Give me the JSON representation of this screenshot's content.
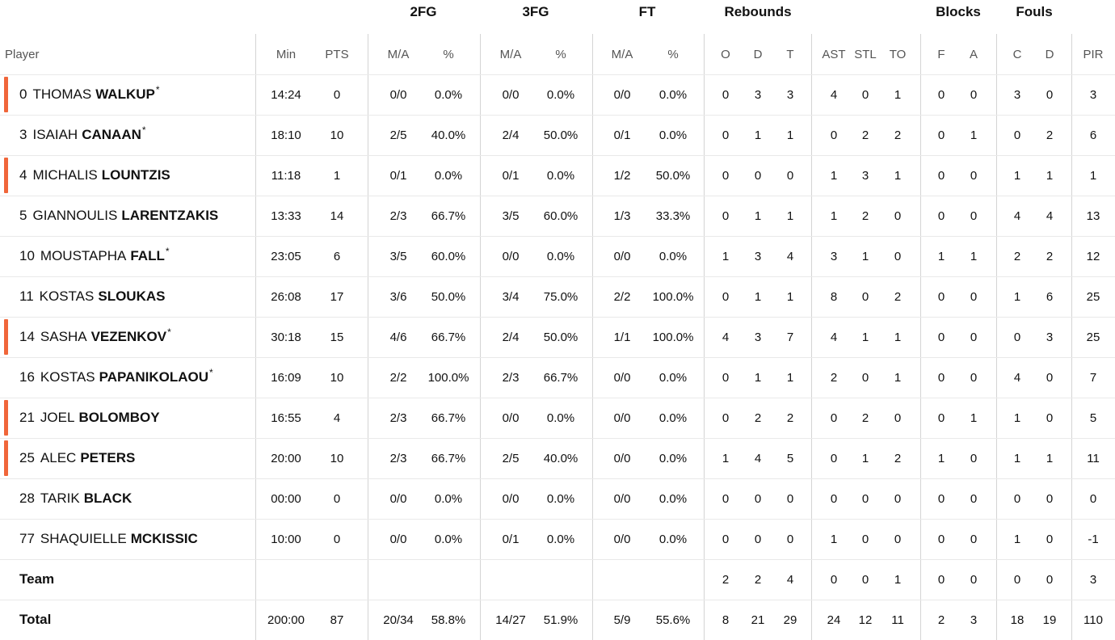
{
  "groups": {
    "fg2": "2FG",
    "fg3": "3FG",
    "ft": "FT",
    "reb": "Rebounds",
    "blk": "Blocks",
    "fouls": "Fouls"
  },
  "columns": {
    "player": "Player",
    "min": "Min",
    "pts": "PTS",
    "fg2_ma": "M/A",
    "fg2_pct": "%",
    "fg3_ma": "M/A",
    "fg3_pct": "%",
    "ft_ma": "M/A",
    "ft_pct": "%",
    "reb_o": "O",
    "reb_d": "D",
    "reb_t": "T",
    "ast": "AST",
    "stl": "STL",
    "to": "TO",
    "blk_f": "F",
    "blk_a": "A",
    "foul_c": "C",
    "foul_d": "D",
    "pir": "PIR"
  },
  "marker_color": "#f0663a",
  "players": [
    {
      "num": "0",
      "first": "THOMAS",
      "last": "WALKUP",
      "star": "*",
      "marker": true,
      "min": "14:24",
      "pts": "0",
      "fg2_ma": "0/0",
      "fg2_pct": "0.0%",
      "fg3_ma": "0/0",
      "fg3_pct": "0.0%",
      "ft_ma": "0/0",
      "ft_pct": "0.0%",
      "reb_o": "0",
      "reb_d": "3",
      "reb_t": "3",
      "ast": "4",
      "stl": "0",
      "to": "1",
      "blk_f": "0",
      "blk_a": "0",
      "foul_c": "3",
      "foul_d": "0",
      "pir": "3"
    },
    {
      "num": "3",
      "first": "ISAIAH",
      "last": "CANAAN",
      "star": "*",
      "marker": false,
      "min": "18:10",
      "pts": "10",
      "fg2_ma": "2/5",
      "fg2_pct": "40.0%",
      "fg3_ma": "2/4",
      "fg3_pct": "50.0%",
      "ft_ma": "0/1",
      "ft_pct": "0.0%",
      "reb_o": "0",
      "reb_d": "1",
      "reb_t": "1",
      "ast": "0",
      "stl": "2",
      "to": "2",
      "blk_f": "0",
      "blk_a": "1",
      "foul_c": "0",
      "foul_d": "2",
      "pir": "6"
    },
    {
      "num": "4",
      "first": "MICHALIS",
      "last": "LOUNTZIS",
      "star": "",
      "marker": true,
      "min": "11:18",
      "pts": "1",
      "fg2_ma": "0/1",
      "fg2_pct": "0.0%",
      "fg3_ma": "0/1",
      "fg3_pct": "0.0%",
      "ft_ma": "1/2",
      "ft_pct": "50.0%",
      "reb_o": "0",
      "reb_d": "0",
      "reb_t": "0",
      "ast": "1",
      "stl": "3",
      "to": "1",
      "blk_f": "0",
      "blk_a": "0",
      "foul_c": "1",
      "foul_d": "1",
      "pir": "1"
    },
    {
      "num": "5",
      "first": "GIANNOULIS",
      "last": "LARENTZAKIS",
      "star": "",
      "marker": false,
      "min": "13:33",
      "pts": "14",
      "fg2_ma": "2/3",
      "fg2_pct": "66.7%",
      "fg3_ma": "3/5",
      "fg3_pct": "60.0%",
      "ft_ma": "1/3",
      "ft_pct": "33.3%",
      "reb_o": "0",
      "reb_d": "1",
      "reb_t": "1",
      "ast": "1",
      "stl": "2",
      "to": "0",
      "blk_f": "0",
      "blk_a": "0",
      "foul_c": "4",
      "foul_d": "4",
      "pir": "13"
    },
    {
      "num": "10",
      "first": "MOUSTAPHA",
      "last": "FALL",
      "star": "*",
      "marker": false,
      "min": "23:05",
      "pts": "6",
      "fg2_ma": "3/5",
      "fg2_pct": "60.0%",
      "fg3_ma": "0/0",
      "fg3_pct": "0.0%",
      "ft_ma": "0/0",
      "ft_pct": "0.0%",
      "reb_o": "1",
      "reb_d": "3",
      "reb_t": "4",
      "ast": "3",
      "stl": "1",
      "to": "0",
      "blk_f": "1",
      "blk_a": "1",
      "foul_c": "2",
      "foul_d": "2",
      "pir": "12"
    },
    {
      "num": "11",
      "first": "KOSTAS",
      "last": "SLOUKAS",
      "star": "",
      "marker": false,
      "min": "26:08",
      "pts": "17",
      "fg2_ma": "3/6",
      "fg2_pct": "50.0%",
      "fg3_ma": "3/4",
      "fg3_pct": "75.0%",
      "ft_ma": "2/2",
      "ft_pct": "100.0%",
      "reb_o": "0",
      "reb_d": "1",
      "reb_t": "1",
      "ast": "8",
      "stl": "0",
      "to": "2",
      "blk_f": "0",
      "blk_a": "0",
      "foul_c": "1",
      "foul_d": "6",
      "pir": "25"
    },
    {
      "num": "14",
      "first": "SASHA",
      "last": "VEZENKOV",
      "star": "*",
      "marker": true,
      "min": "30:18",
      "pts": "15",
      "fg2_ma": "4/6",
      "fg2_pct": "66.7%",
      "fg3_ma": "2/4",
      "fg3_pct": "50.0%",
      "ft_ma": "1/1",
      "ft_pct": "100.0%",
      "reb_o": "4",
      "reb_d": "3",
      "reb_t": "7",
      "ast": "4",
      "stl": "1",
      "to": "1",
      "blk_f": "0",
      "blk_a": "0",
      "foul_c": "0",
      "foul_d": "3",
      "pir": "25"
    },
    {
      "num": "16",
      "first": "KOSTAS",
      "last": "PAPANIKOLAOU",
      "star": "*",
      "marker": false,
      "min": "16:09",
      "pts": "10",
      "fg2_ma": "2/2",
      "fg2_pct": "100.0%",
      "fg3_ma": "2/3",
      "fg3_pct": "66.7%",
      "ft_ma": "0/0",
      "ft_pct": "0.0%",
      "reb_o": "0",
      "reb_d": "1",
      "reb_t": "1",
      "ast": "2",
      "stl": "0",
      "to": "1",
      "blk_f": "0",
      "blk_a": "0",
      "foul_c": "4",
      "foul_d": "0",
      "pir": "7"
    },
    {
      "num": "21",
      "first": "JOEL",
      "last": "BOLOMBOY",
      "star": "",
      "marker": true,
      "min": "16:55",
      "pts": "4",
      "fg2_ma": "2/3",
      "fg2_pct": "66.7%",
      "fg3_ma": "0/0",
      "fg3_pct": "0.0%",
      "ft_ma": "0/0",
      "ft_pct": "0.0%",
      "reb_o": "0",
      "reb_d": "2",
      "reb_t": "2",
      "ast": "0",
      "stl": "2",
      "to": "0",
      "blk_f": "0",
      "blk_a": "1",
      "foul_c": "1",
      "foul_d": "0",
      "pir": "5"
    },
    {
      "num": "25",
      "first": "ALEC",
      "last": "PETERS",
      "star": "",
      "marker": true,
      "min": "20:00",
      "pts": "10",
      "fg2_ma": "2/3",
      "fg2_pct": "66.7%",
      "fg3_ma": "2/5",
      "fg3_pct": "40.0%",
      "ft_ma": "0/0",
      "ft_pct": "0.0%",
      "reb_o": "1",
      "reb_d": "4",
      "reb_t": "5",
      "ast": "0",
      "stl": "1",
      "to": "2",
      "blk_f": "1",
      "blk_a": "0",
      "foul_c": "1",
      "foul_d": "1",
      "pir": "11"
    },
    {
      "num": "28",
      "first": "TARIK",
      "last": "BLACK",
      "star": "",
      "marker": false,
      "min": "00:00",
      "pts": "0",
      "fg2_ma": "0/0",
      "fg2_pct": "0.0%",
      "fg3_ma": "0/0",
      "fg3_pct": "0.0%",
      "ft_ma": "0/0",
      "ft_pct": "0.0%",
      "reb_o": "0",
      "reb_d": "0",
      "reb_t": "0",
      "ast": "0",
      "stl": "0",
      "to": "0",
      "blk_f": "0",
      "blk_a": "0",
      "foul_c": "0",
      "foul_d": "0",
      "pir": "0"
    },
    {
      "num": "77",
      "first": "SHAQUIELLE",
      "last": "MCKISSIC",
      "star": "",
      "marker": false,
      "min": "10:00",
      "pts": "0",
      "fg2_ma": "0/0",
      "fg2_pct": "0.0%",
      "fg3_ma": "0/1",
      "fg3_pct": "0.0%",
      "ft_ma": "0/0",
      "ft_pct": "0.0%",
      "reb_o": "0",
      "reb_d": "0",
      "reb_t": "0",
      "ast": "1",
      "stl": "0",
      "to": "0",
      "blk_f": "0",
      "blk_a": "0",
      "foul_c": "1",
      "foul_d": "0",
      "pir": "-1"
    }
  ],
  "team": {
    "label": "Team",
    "min": "",
    "pts": "",
    "fg2_ma": "",
    "fg2_pct": "",
    "fg3_ma": "",
    "fg3_pct": "",
    "ft_ma": "",
    "ft_pct": "",
    "reb_o": "2",
    "reb_d": "2",
    "reb_t": "4",
    "ast": "0",
    "stl": "0",
    "to": "1",
    "blk_f": "0",
    "blk_a": "0",
    "foul_c": "0",
    "foul_d": "0",
    "pir": "3"
  },
  "total": {
    "label": "Total",
    "min": "200:00",
    "pts": "87",
    "fg2_ma": "20/34",
    "fg2_pct": "58.8%",
    "fg3_ma": "14/27",
    "fg3_pct": "51.9%",
    "ft_ma": "5/9",
    "ft_pct": "55.6%",
    "reb_o": "8",
    "reb_d": "21",
    "reb_t": "29",
    "ast": "24",
    "stl": "12",
    "to": "11",
    "blk_f": "2",
    "blk_a": "3",
    "foul_c": "18",
    "foul_d": "19",
    "pir": "110"
  }
}
